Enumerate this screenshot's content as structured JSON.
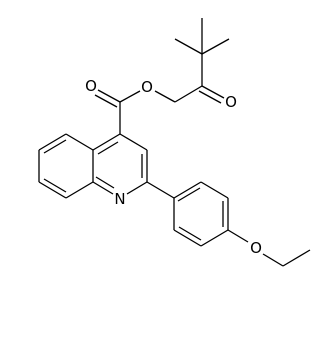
{
  "atoms": [
    {
      "label": "O"
    },
    {
      "label": "O"
    },
    {
      "label": "O"
    },
    {
      "label": "N"
    },
    {
      "label": "O"
    }
  ]
}
